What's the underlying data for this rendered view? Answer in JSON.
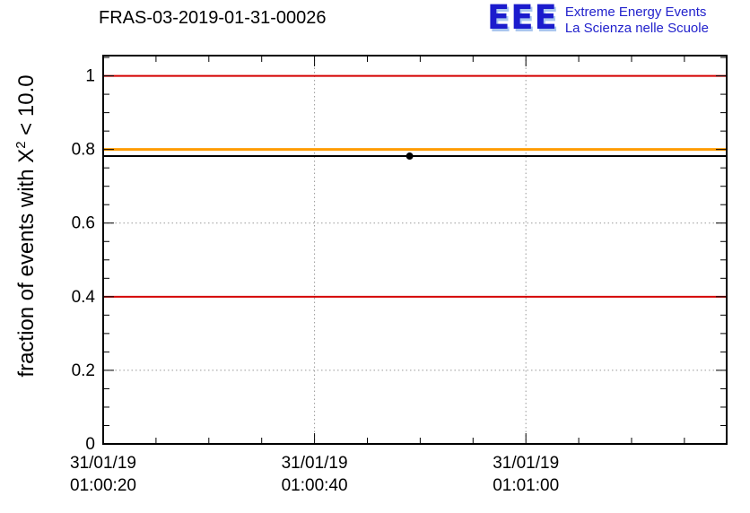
{
  "header": {
    "title": "FRAS-03-2019-01-31-00026",
    "logo": {
      "acronym": "EEE",
      "acronym_color": "#1b1bcd",
      "acronym_shadow_color": "#a9c6ee",
      "tagline1": "Extreme Energy Events",
      "tagline2": "La Scienza nelle Scuole",
      "tagline_color": "#2222cc"
    }
  },
  "chart_data": {
    "type": "scatter",
    "title": "FRAS-03-2019-01-31-00026",
    "ylabel": {
      "prefix": "fraction of events with X",
      "sup": "2",
      "suffix": " < 10.0"
    },
    "ylim": [
      0,
      1.055
    ],
    "xlim_seconds": [
      3620,
      3679
    ],
    "grid": true,
    "x_major_ticks": [
      {
        "seconds": 3620,
        "label_date": "31/01/19",
        "label_time": "01:00:20"
      },
      {
        "seconds": 3640,
        "label_date": "31/01/19",
        "label_time": "01:00:40"
      },
      {
        "seconds": 3660,
        "label_date": "31/01/19",
        "label_time": "01:01:00"
      }
    ],
    "x_minor_step_seconds": 5,
    "y_major_ticks": [
      {
        "value": 0,
        "label": "0"
      },
      {
        "value": 0.2,
        "label": "0.2"
      },
      {
        "value": 0.4,
        "label": "0.4"
      },
      {
        "value": 0.6,
        "label": "0.6"
      },
      {
        "value": 0.8,
        "label": "0.8"
      },
      {
        "value": 1,
        "label": "1"
      }
    ],
    "y_minor_step": 0.05,
    "points": [
      {
        "seconds": 3649,
        "time": "01:00:49",
        "y": 0.782
      }
    ],
    "reference_lines": [
      {
        "name": "upper-alarm",
        "y": 1.0,
        "color": "#d40000",
        "width": 2
      },
      {
        "name": "warning",
        "y": 0.8,
        "color": "#ff9c00",
        "width": 3
      },
      {
        "name": "mean",
        "y": 0.782,
        "color": "#000000",
        "width": 2
      },
      {
        "name": "lower-alarm",
        "y": 0.4,
        "color": "#d40000",
        "width": 2
      }
    ],
    "colors": {
      "frame": "#000000",
      "grid": "#999999",
      "marker": "#000000"
    }
  }
}
